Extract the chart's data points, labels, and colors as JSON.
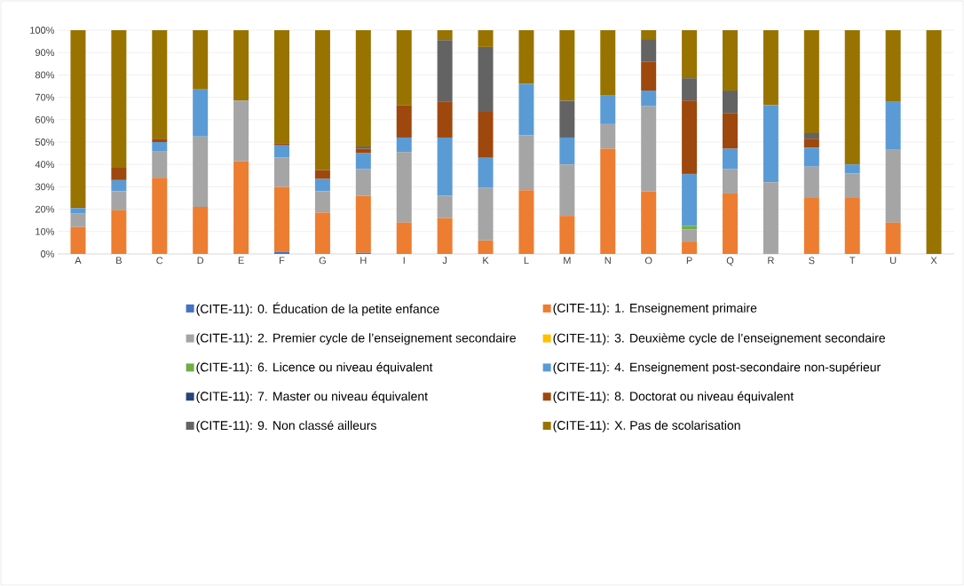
{
  "chart_data": {
    "type": "bar",
    "stacked": true,
    "categories": [
      "A",
      "B",
      "C",
      "D",
      "E",
      "F",
      "G",
      "H",
      "I",
      "J",
      "K",
      "L",
      "M",
      "N",
      "O",
      "P",
      "Q",
      "R",
      "S",
      "T",
      "U",
      "X"
    ],
    "series": [
      {
        "name": "(CITE-11): 0. Éducation de la petite enfance",
        "color": "#4472c4",
        "values": [
          0,
          0,
          0,
          0,
          0,
          1,
          0,
          0.5,
          0,
          0,
          0,
          0,
          0,
          0,
          0,
          0,
          0,
          0,
          0,
          0,
          0,
          0
        ]
      },
      {
        "name": "(CITE-11): 1. Enseignement primaire",
        "color": "#ed7d31",
        "values": [
          12,
          19.5,
          34,
          21,
          41.5,
          29,
          18.5,
          25.5,
          14,
          16,
          6,
          28.5,
          17,
          47,
          28,
          5.5,
          27,
          0,
          25,
          25,
          14,
          0
        ]
      },
      {
        "name": "(CITE-11): 2. Premier cycle de l’enseignement secondaire",
        "color": "#a5a5a5",
        "values": [
          6,
          8.5,
          12,
          31.5,
          27,
          13,
          9.5,
          12,
          31.5,
          10,
          23.5,
          24.5,
          23,
          11,
          38,
          5.5,
          11,
          32,
          14,
          11,
          32.5,
          0
        ]
      },
      {
        "name": "(CITE-11): 3. Deuxième cycle de l’enseignement secondaire",
        "color": "#ffc000",
        "values": [
          0,
          0,
          0,
          0,
          0,
          0,
          0,
          0,
          0,
          0,
          0,
          0,
          0,
          0,
          0,
          0,
          0,
          0,
          0,
          0,
          0,
          0
        ]
      },
      {
        "name": "(CITE-11): 6. Licence ou niveau équivalent",
        "color": "#70ad47",
        "values": [
          0,
          0,
          0,
          0,
          0,
          0,
          0,
          0,
          0,
          0,
          0,
          0,
          0,
          0,
          0,
          1.5,
          0,
          0,
          0,
          0,
          0,
          0
        ]
      },
      {
        "name": "(CITE-11): 4. Enseignement post-secondaire non-supérieur",
        "color": "#5b9bd5",
        "values": [
          2.5,
          5,
          4,
          21,
          0,
          5.5,
          5.5,
          7,
          6.5,
          26,
          13.5,
          23,
          12,
          13,
          7,
          23,
          9,
          34.5,
          8.5,
          4,
          21.5,
          0
        ]
      },
      {
        "name": "(CITE-11): 7. Master ou niveau équivalent",
        "color": "#264478",
        "values": [
          0,
          0,
          0,
          0,
          0,
          0,
          0,
          0,
          0,
          0,
          0,
          0,
          0,
          0,
          0,
          0.5,
          0,
          0,
          0,
          0,
          0,
          0
        ]
      },
      {
        "name": "(CITE-11): 8. Doctorat ou niveau équivalent",
        "color": "#9e480e",
        "values": [
          0.5,
          5.5,
          1.5,
          0,
          0,
          1,
          4,
          2,
          14.5,
          16,
          20.5,
          0,
          0,
          0,
          13,
          32.5,
          16,
          0,
          4,
          0,
          0,
          0
        ]
      },
      {
        "name": "(CITE-11): 9. Non classé ailleurs",
        "color": "#636363",
        "values": [
          0,
          0,
          0,
          0,
          0,
          0,
          0,
          1,
          0,
          27.5,
          29,
          0,
          16.5,
          0,
          10,
          10,
          10,
          0,
          2.5,
          0,
          0,
          0
        ]
      },
      {
        "name": "(CITE-11): X. Pas de scolarisation",
        "color": "#997300",
        "values": [
          79,
          61.5,
          48.5,
          26.5,
          31.5,
          50.5,
          62.5,
          52,
          33.5,
          4.5,
          7.5,
          24,
          31.5,
          29,
          4,
          21.5,
          27,
          33.5,
          46,
          60,
          32,
          100
        ]
      }
    ],
    "ylim": [
      0,
      100
    ],
    "yticks": [
      {
        "value": 0,
        "label": "0%"
      },
      {
        "value": 10,
        "label": "10%"
      },
      {
        "value": 20,
        "label": "20%"
      },
      {
        "value": 30,
        "label": "30%"
      },
      {
        "value": 40,
        "label": "40%"
      },
      {
        "value": 50,
        "label": "50%"
      },
      {
        "value": 60,
        "label": "60%"
      },
      {
        "value": 70,
        "label": "70%"
      },
      {
        "value": 80,
        "label": "80%"
      },
      {
        "value": 90,
        "label": "90%"
      },
      {
        "value": 100,
        "label": "100%"
      }
    ],
    "grid": "y",
    "legend": "bottom"
  }
}
